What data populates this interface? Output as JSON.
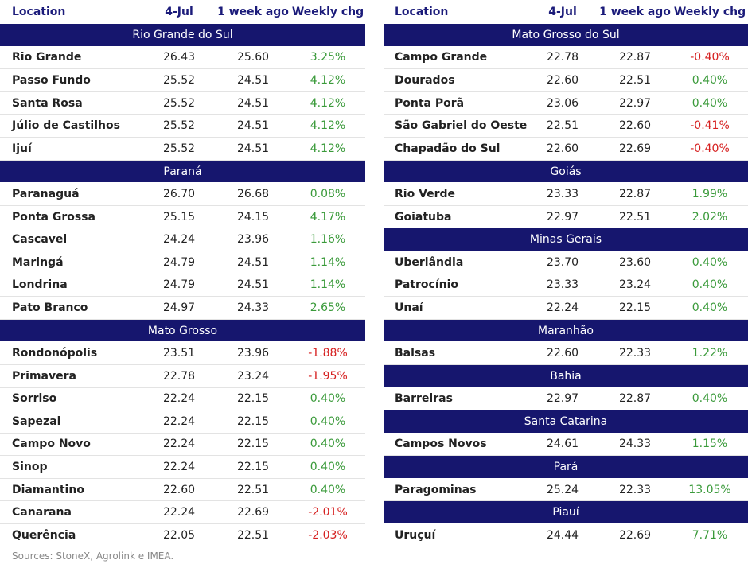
{
  "tables": [
    {
      "header": [
        "Location",
        "4-Jul",
        "1 week ago",
        "Weekly chg"
      ],
      "groups": [
        {
          "region": "Rio Grande do Sul",
          "rows": [
            [
              "Rio Grande",
              "26.43",
              "25.60",
              "3.25%"
            ],
            [
              "Passo Fundo",
              "25.52",
              "24.51",
              "4.12%"
            ],
            [
              "Santa Rosa",
              "25.52",
              "24.51",
              "4.12%"
            ],
            [
              "Júlio de Castilhos",
              "25.52",
              "24.51",
              "4.12%"
            ],
            [
              "Ijuí",
              "25.52",
              "24.51",
              "4.12%"
            ]
          ]
        },
        {
          "region": "Paraná",
          "rows": [
            [
              "Paranaguá",
              "26.70",
              "26.68",
              "0.08%"
            ],
            [
              "Ponta Grossa",
              "25.15",
              "24.15",
              "4.17%"
            ],
            [
              "Cascavel",
              "24.24",
              "23.96",
              "1.16%"
            ],
            [
              "Maringá",
              "24.79",
              "24.51",
              "1.14%"
            ],
            [
              "Londrina",
              "24.79",
              "24.51",
              "1.14%"
            ],
            [
              "Pato Branco",
              "24.97",
              "24.33",
              "2.65%"
            ]
          ]
        },
        {
          "region": "Mato Grosso",
          "rows": [
            [
              "Rondonópolis",
              "23.51",
              "23.96",
              "-1.88%"
            ],
            [
              "Primavera",
              "22.78",
              "23.24",
              "-1.95%"
            ],
            [
              "Sorriso",
              "22.24",
              "22.15",
              "0.40%"
            ],
            [
              "Sapezal",
              "22.24",
              "22.15",
              "0.40%"
            ],
            [
              "Campo Novo",
              "22.24",
              "22.15",
              "0.40%"
            ],
            [
              "Sinop",
              "22.24",
              "22.15",
              "0.40%"
            ],
            [
              "Diamantino",
              "22.60",
              "22.51",
              "0.40%"
            ],
            [
              "Canarana",
              "22.24",
              "22.69",
              "-2.01%"
            ],
            [
              "Querência",
              "22.05",
              "22.51",
              "-2.03%"
            ]
          ]
        }
      ]
    },
    {
      "header": [
        "Location",
        "4-Jul",
        "1 week ago",
        "Weekly chg"
      ],
      "groups": [
        {
          "region": "Mato Grosso do Sul",
          "rows": [
            [
              "Campo Grande",
              "22.78",
              "22.87",
              "-0.40%"
            ],
            [
              "Dourados",
              "22.60",
              "22.51",
              "0.40%"
            ],
            [
              "Ponta Porã",
              "23.06",
              "22.97",
              "0.40%"
            ],
            [
              "São Gabriel do Oeste",
              "22.51",
              "22.60",
              "-0.41%"
            ],
            [
              "Chapadão do Sul",
              "22.60",
              "22.69",
              "-0.40%"
            ]
          ]
        },
        {
          "region": "Goiás",
          "rows": [
            [
              "Rio Verde",
              "23.33",
              "22.87",
              "1.99%"
            ],
            [
              "Goiatuba",
              "22.97",
              "22.51",
              "2.02%"
            ]
          ]
        },
        {
          "region": "Minas Gerais",
          "rows": [
            [
              "Uberlândia",
              "23.70",
              "23.60",
              "0.40%"
            ],
            [
              "Patrocínio",
              "23.33",
              "23.24",
              "0.40%"
            ],
            [
              "Unaí",
              "22.24",
              "22.15",
              "0.40%"
            ]
          ]
        },
        {
          "region": "Maranhão",
          "rows": [
            [
              "Balsas",
              "22.60",
              "22.33",
              "1.22%"
            ]
          ]
        },
        {
          "region": "Bahia",
          "rows": [
            [
              "Barreiras",
              "22.97",
              "22.87",
              "0.40%"
            ]
          ]
        },
        {
          "region": "Santa Catarina",
          "rows": [
            [
              "Campos Novos",
              "24.61",
              "24.33",
              "1.15%"
            ]
          ]
        },
        {
          "region": "Pará",
          "rows": [
            [
              "Paragominas",
              "25.24",
              "22.33",
              "13.05%"
            ]
          ]
        },
        {
          "region": "Piauí",
          "rows": [
            [
              "Uruçuí",
              "24.44",
              "22.69",
              "7.71%"
            ]
          ]
        }
      ]
    }
  ],
  "source": "Sources: StoneX, Agrolink e IMEA."
}
